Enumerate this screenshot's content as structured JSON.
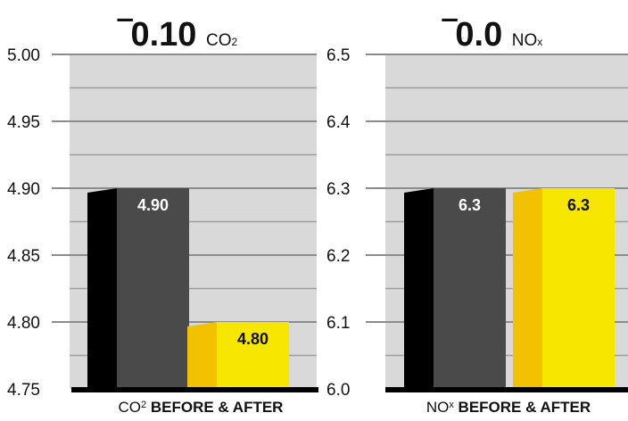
{
  "chart_data": [
    {
      "type": "bar",
      "headline": {
        "symbol": "‾",
        "value": "0.10",
        "unit_main": "CO",
        "unit_sub": "2"
      },
      "categories": [
        "Before",
        "After"
      ],
      "values": [
        4.9,
        4.8
      ],
      "value_labels": [
        "4.90",
        "4.80"
      ],
      "colors": [
        "#4a4a4a",
        "#f7e600"
      ],
      "side_colors": [
        "#000000",
        "#f2c200"
      ],
      "ylim": [
        4.75,
        5.0
      ],
      "yticks": [
        "4.75",
        "4.80",
        "4.85",
        "4.90",
        "4.95",
        "5.00"
      ],
      "minor_grid": true,
      "xlabel_prefix": "CO",
      "xlabel_sup": "2",
      "xlabel_bold": "BEFORE & AFTER"
    },
    {
      "type": "bar",
      "headline": {
        "symbol": "‾",
        "value": "0.0",
        "unit_main": "NO",
        "unit_sub": "x"
      },
      "categories": [
        "Before",
        "After"
      ],
      "values": [
        6.3,
        6.3
      ],
      "value_labels": [
        "6.3",
        "6.3"
      ],
      "colors": [
        "#4a4a4a",
        "#f7e600"
      ],
      "side_colors": [
        "#000000",
        "#f2c200"
      ],
      "ylim": [
        6.0,
        6.5
      ],
      "yticks": [
        "6.0",
        "6.1",
        "6.2",
        "6.3",
        "6.4",
        "6.5"
      ],
      "minor_grid": true,
      "xlabel_prefix": "NO",
      "xlabel_sup": "x",
      "xlabel_bold": "BEFORE & AFTER"
    }
  ]
}
